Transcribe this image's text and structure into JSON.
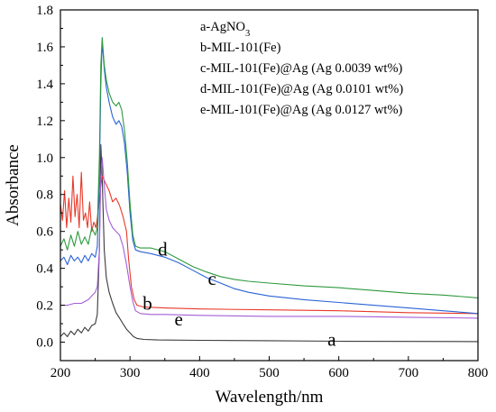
{
  "chart_data": {
    "type": "line",
    "xlabel": "Wavelength/nm",
    "ylabel": "Absorbance",
    "xlim": [
      200,
      800
    ],
    "ylim": [
      -0.1,
      1.8
    ],
    "xticks": [
      200,
      300,
      400,
      500,
      600,
      700,
      800
    ],
    "yticks": [
      0.0,
      0.2,
      0.4,
      0.6,
      0.8,
      1.0,
      1.2,
      1.4,
      1.6,
      1.8
    ],
    "ytick_labels": [
      "0.0",
      "0.2",
      "0.4",
      "0.6",
      "0.8",
      "1.0",
      "1.2",
      "1.4",
      "1.6",
      "1.8"
    ],
    "grid": false,
    "legend_position": "top-right",
    "legend": [
      {
        "pre": "a-AgNO",
        "sub": "3",
        "post": ""
      },
      {
        "pre": "b-MIL-101(Fe)",
        "sub": "",
        "post": ""
      },
      {
        "pre": "c-MIL-101(Fe)@Ag (Ag 0.0039 wt%)",
        "sub": "",
        "post": ""
      },
      {
        "pre": "d-MIL-101(Fe)@Ag (Ag 0.0101 wt%)",
        "sub": "",
        "post": ""
      },
      {
        "pre": "e-MIL-101(Fe)@Ag (Ag 0.0127 wt%)",
        "sub": "",
        "post": ""
      }
    ],
    "series": [
      {
        "label": "a",
        "color": "#3a3a3a",
        "points": [
          [
            200,
            0.03
          ],
          [
            205,
            0.05
          ],
          [
            210,
            0.03
          ],
          [
            215,
            0.06
          ],
          [
            220,
            0.04
          ],
          [
            225,
            0.07
          ],
          [
            230,
            0.05
          ],
          [
            235,
            0.08
          ],
          [
            240,
            0.06
          ],
          [
            245,
            0.09
          ],
          [
            250,
            0.1
          ],
          [
            253,
            0.15
          ],
          [
            256,
            0.5
          ],
          [
            258,
            1.07
          ],
          [
            260,
            0.9
          ],
          [
            263,
            0.5
          ],
          [
            266,
            0.35
          ],
          [
            270,
            0.27
          ],
          [
            275,
            0.21
          ],
          [
            280,
            0.16
          ],
          [
            285,
            0.13
          ],
          [
            290,
            0.1
          ],
          [
            295,
            0.07
          ],
          [
            300,
            0.05
          ],
          [
            305,
            0.03
          ],
          [
            310,
            0.02
          ],
          [
            320,
            0.015
          ],
          [
            340,
            0.012
          ],
          [
            400,
            0.01
          ],
          [
            500,
            0.008
          ],
          [
            600,
            0.005
          ],
          [
            700,
            0.004
          ],
          [
            800,
            0.003
          ]
        ]
      },
      {
        "label": "b",
        "color": "#e8392a",
        "points": [
          [
            200,
            0.75
          ],
          [
            203,
            0.66
          ],
          [
            206,
            0.82
          ],
          [
            209,
            0.62
          ],
          [
            212,
            0.78
          ],
          [
            215,
            0.65
          ],
          [
            218,
            0.9
          ],
          [
            221,
            0.68
          ],
          [
            224,
            0.8
          ],
          [
            227,
            0.62
          ],
          [
            230,
            0.92
          ],
          [
            233,
            0.66
          ],
          [
            236,
            0.7
          ],
          [
            239,
            0.62
          ],
          [
            242,
            0.76
          ],
          [
            245,
            0.6
          ],
          [
            248,
            0.65
          ],
          [
            251,
            0.62
          ],
          [
            254,
            0.7
          ],
          [
            257,
            0.82
          ],
          [
            260,
            0.9
          ],
          [
            265,
            0.86
          ],
          [
            270,
            0.82
          ],
          [
            275,
            0.76
          ],
          [
            280,
            0.78
          ],
          [
            285,
            0.74
          ],
          [
            290,
            0.68
          ],
          [
            295,
            0.6
          ],
          [
            298,
            0.45
          ],
          [
            302,
            0.3
          ],
          [
            306,
            0.23
          ],
          [
            310,
            0.2
          ],
          [
            320,
            0.19
          ],
          [
            350,
            0.185
          ],
          [
            400,
            0.18
          ],
          [
            500,
            0.175
          ],
          [
            600,
            0.17
          ],
          [
            700,
            0.16
          ],
          [
            800,
            0.155
          ]
        ]
      },
      {
        "label": "c",
        "color": "#2a63d6",
        "points": [
          [
            200,
            0.44
          ],
          [
            205,
            0.46
          ],
          [
            210,
            0.42
          ],
          [
            215,
            0.47
          ],
          [
            220,
            0.44
          ],
          [
            225,
            0.46
          ],
          [
            230,
            0.43
          ],
          [
            235,
            0.47
          ],
          [
            240,
            0.44
          ],
          [
            245,
            0.48
          ],
          [
            250,
            0.46
          ],
          [
            253,
            0.52
          ],
          [
            256,
            0.9
          ],
          [
            258,
            1.4
          ],
          [
            260,
            1.63
          ],
          [
            263,
            1.48
          ],
          [
            266,
            1.38
          ],
          [
            270,
            1.3
          ],
          [
            275,
            1.22
          ],
          [
            280,
            1.18
          ],
          [
            284,
            1.2
          ],
          [
            288,
            1.17
          ],
          [
            292,
            1.08
          ],
          [
            296,
            0.92
          ],
          [
            300,
            0.7
          ],
          [
            304,
            0.55
          ],
          [
            308,
            0.5
          ],
          [
            315,
            0.49
          ],
          [
            330,
            0.48
          ],
          [
            350,
            0.46
          ],
          [
            370,
            0.43
          ],
          [
            390,
            0.39
          ],
          [
            410,
            0.35
          ],
          [
            430,
            0.32
          ],
          [
            450,
            0.29
          ],
          [
            470,
            0.27
          ],
          [
            500,
            0.25
          ],
          [
            550,
            0.23
          ],
          [
            600,
            0.215
          ],
          [
            650,
            0.2
          ],
          [
            700,
            0.185
          ],
          [
            750,
            0.17
          ],
          [
            800,
            0.155
          ]
        ]
      },
      {
        "label": "d",
        "color": "#2d9a3e",
        "points": [
          [
            200,
            0.52
          ],
          [
            205,
            0.56
          ],
          [
            210,
            0.5
          ],
          [
            215,
            0.58
          ],
          [
            220,
            0.52
          ],
          [
            225,
            0.6
          ],
          [
            230,
            0.53
          ],
          [
            235,
            0.57
          ],
          [
            240,
            0.53
          ],
          [
            245,
            0.62
          ],
          [
            250,
            0.58
          ],
          [
            253,
            0.62
          ],
          [
            256,
            1.0
          ],
          [
            258,
            1.5
          ],
          [
            260,
            1.65
          ],
          [
            263,
            1.5
          ],
          [
            266,
            1.42
          ],
          [
            270,
            1.35
          ],
          [
            275,
            1.3
          ],
          [
            280,
            1.28
          ],
          [
            284,
            1.3
          ],
          [
            288,
            1.26
          ],
          [
            292,
            1.15
          ],
          [
            296,
            0.98
          ],
          [
            300,
            0.75
          ],
          [
            304,
            0.58
          ],
          [
            308,
            0.52
          ],
          [
            315,
            0.51
          ],
          [
            330,
            0.51
          ],
          [
            350,
            0.49
          ],
          [
            370,
            0.45
          ],
          [
            390,
            0.41
          ],
          [
            410,
            0.38
          ],
          [
            430,
            0.355
          ],
          [
            450,
            0.34
          ],
          [
            470,
            0.33
          ],
          [
            500,
            0.32
          ],
          [
            550,
            0.305
          ],
          [
            600,
            0.295
          ],
          [
            650,
            0.28
          ],
          [
            700,
            0.265
          ],
          [
            750,
            0.255
          ],
          [
            800,
            0.24
          ]
        ]
      },
      {
        "label": "e",
        "color": "#a35fd6",
        "points": [
          [
            200,
            0.2
          ],
          [
            210,
            0.2
          ],
          [
            220,
            0.21
          ],
          [
            230,
            0.21
          ],
          [
            240,
            0.23
          ],
          [
            245,
            0.25
          ],
          [
            250,
            0.27
          ],
          [
            253,
            0.3
          ],
          [
            256,
            0.5
          ],
          [
            258,
            0.9
          ],
          [
            260,
            1.0
          ],
          [
            263,
            0.85
          ],
          [
            266,
            0.72
          ],
          [
            270,
            0.66
          ],
          [
            275,
            0.62
          ],
          [
            280,
            0.6
          ],
          [
            285,
            0.58
          ],
          [
            290,
            0.52
          ],
          [
            295,
            0.42
          ],
          [
            300,
            0.3
          ],
          [
            304,
            0.22
          ],
          [
            308,
            0.17
          ],
          [
            315,
            0.155
          ],
          [
            330,
            0.15
          ],
          [
            350,
            0.15
          ],
          [
            400,
            0.145
          ],
          [
            500,
            0.14
          ],
          [
            600,
            0.14
          ],
          [
            700,
            0.135
          ],
          [
            800,
            0.13
          ]
        ]
      }
    ],
    "curve_labels": [
      {
        "text": "a",
        "x": 590,
        "y": -0.02
      },
      {
        "text": "b",
        "x": 325,
        "y": 0.175
      },
      {
        "text": "c",
        "x": 418,
        "y": 0.31
      },
      {
        "text": "d",
        "x": 347,
        "y": 0.47
      },
      {
        "text": "e",
        "x": 370,
        "y": 0.09
      }
    ]
  }
}
